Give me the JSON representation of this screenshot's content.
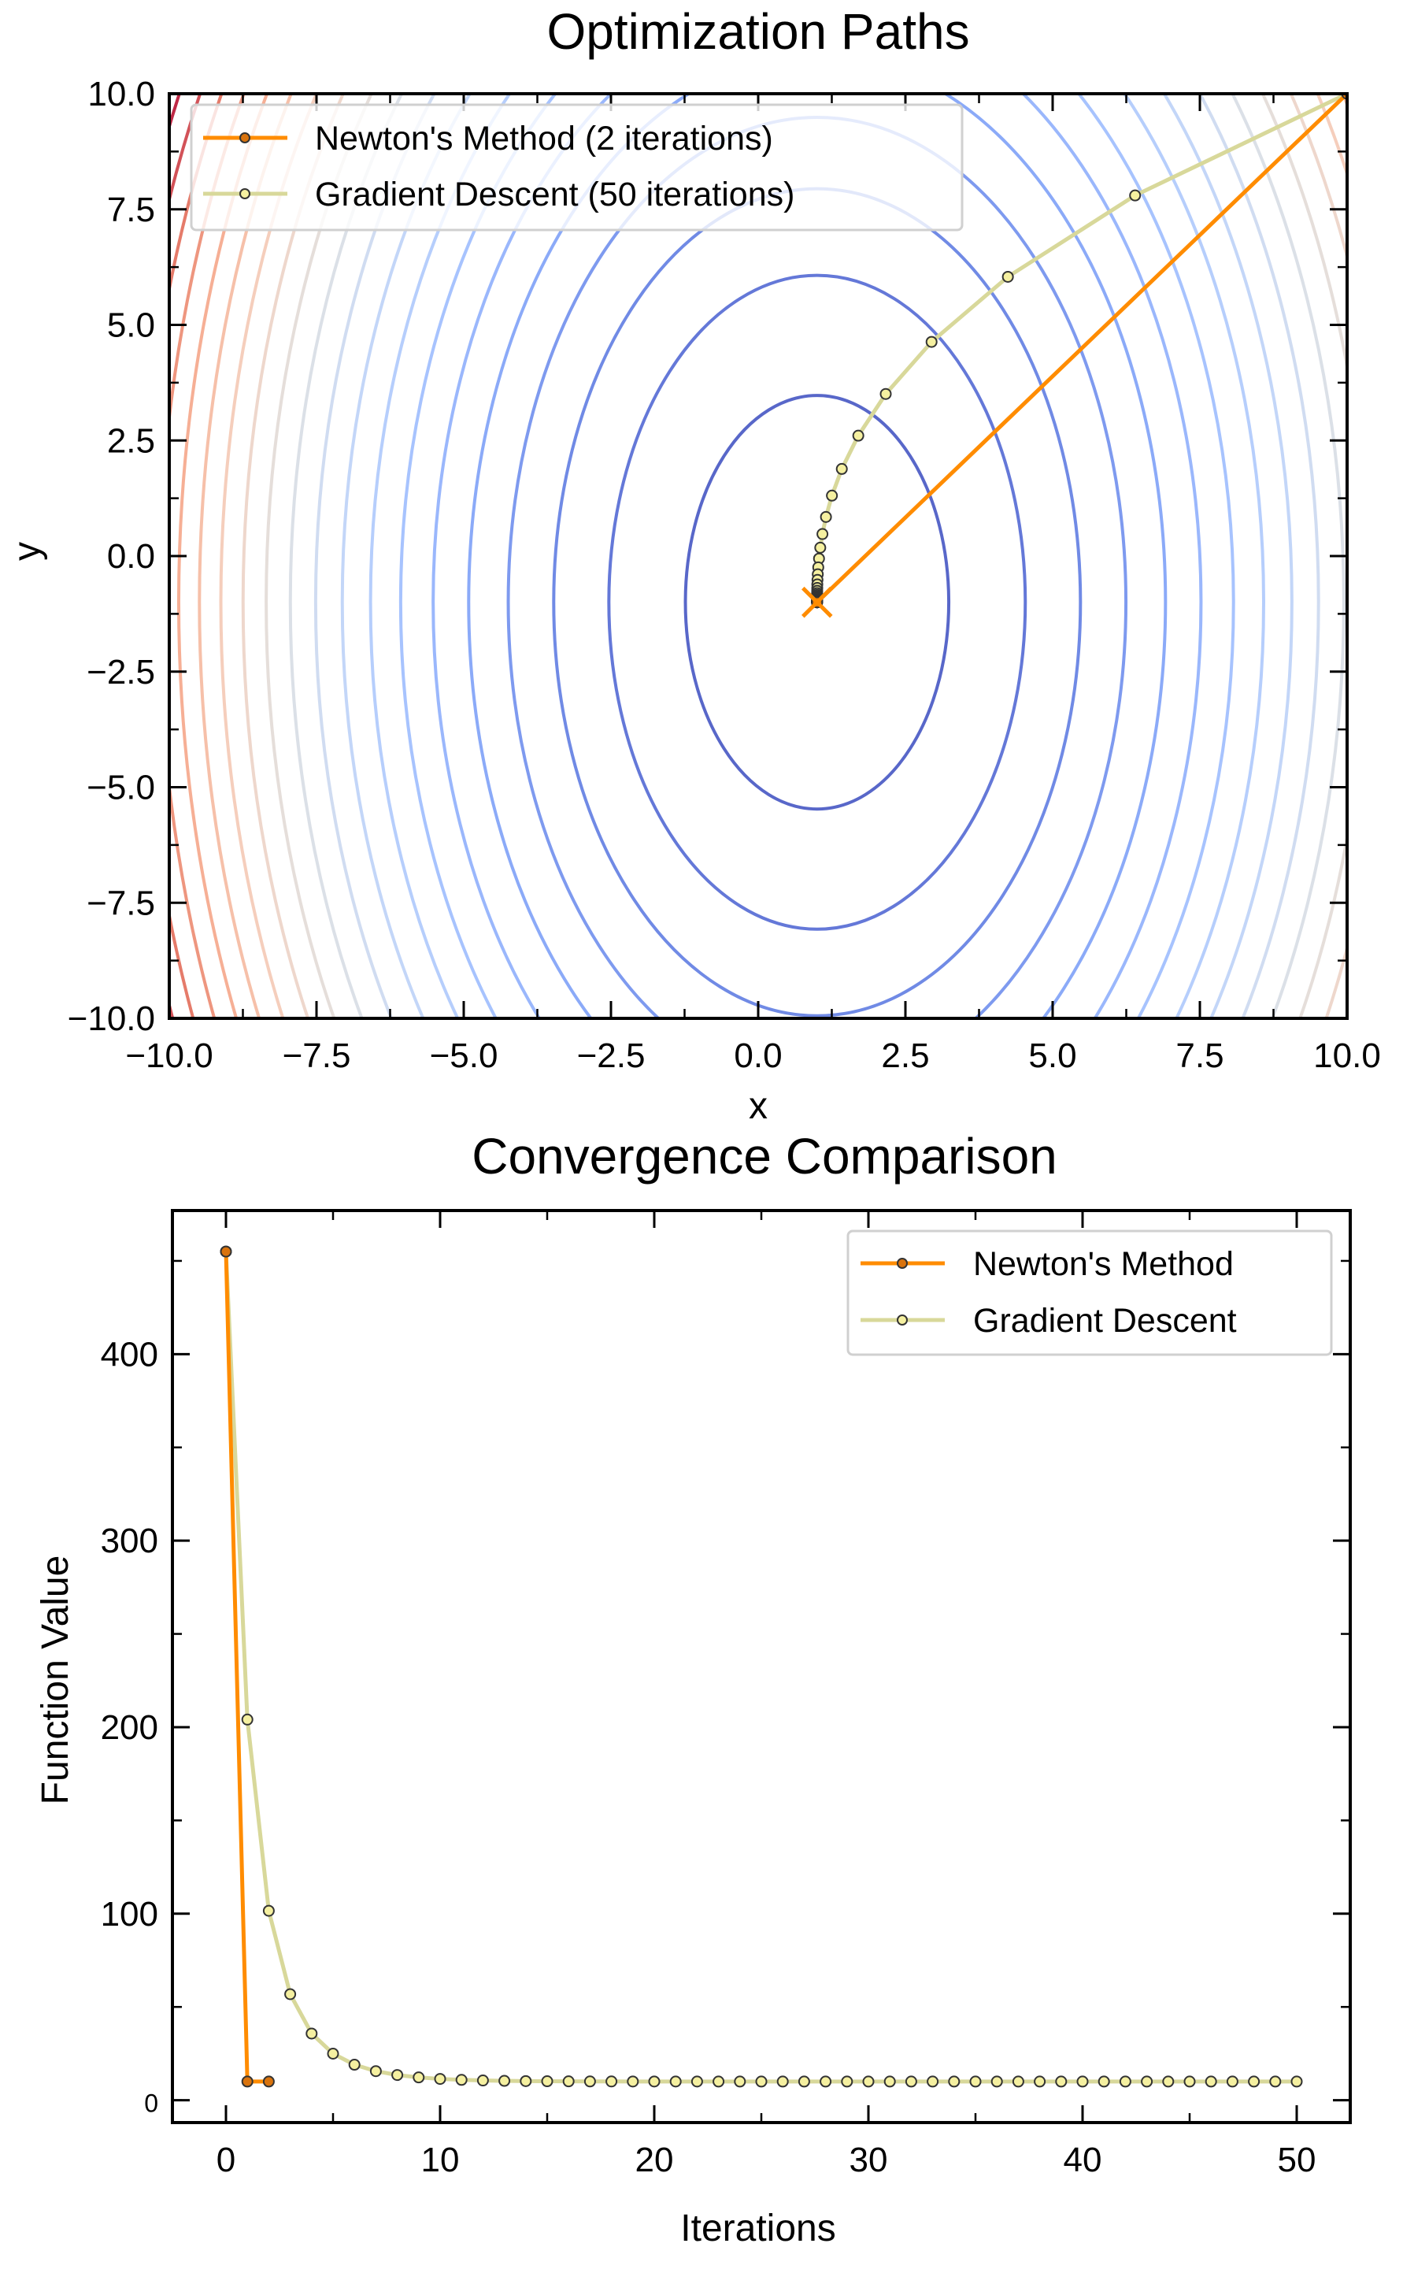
{
  "chart_data": [
    {
      "type": "contour",
      "title": "Optimization Paths",
      "xlabel": "x",
      "ylabel": "y",
      "xlim": [
        -10,
        10
      ],
      "ylim": [
        -10,
        10
      ],
      "xticks": [
        -10,
        -7.5,
        -5,
        -2.5,
        0,
        2.5,
        5,
        7.5,
        10
      ],
      "xtick_labels": [
        "−10.0",
        "−7.5",
        "−5.0",
        "−2.5",
        "0.0",
        "2.5",
        "5.0",
        "7.5",
        "10.0"
      ],
      "yticks": [
        -10,
        -7.5,
        -5,
        -2.5,
        0,
        2.5,
        5,
        7.5,
        10
      ],
      "ytick_labels": [
        "−10.0",
        "−7.5",
        "−5.0",
        "−2.5",
        "0.0",
        "2.5",
        "5.0",
        "7.5",
        "10.0"
      ],
      "minor_tick_step": 1.25,
      "grid": false,
      "legend_position": "upper-left",
      "contour": {
        "field": {
          "a": 4,
          "b": 1,
          "x0": 1,
          "y0": -1,
          "offset": 10
        },
        "levels": [
          30,
          60,
          90,
          120,
          150,
          180,
          210,
          240,
          270,
          300,
          330,
          360,
          390,
          420,
          450,
          480,
          510,
          540,
          570,
          600
        ],
        "colormap": "coolwarm"
      },
      "minimum_marker": {
        "x": 1,
        "y": -1,
        "symbol": "x",
        "color": "#ff8c00"
      },
      "series": [
        {
          "name": "Newton's Method (2 iterations)",
          "color": "#ff8c00",
          "marker_color": "#d9730d",
          "x": [
            10,
            1,
            1
          ],
          "y": [
            10,
            -1,
            -1
          ]
        },
        {
          "name": "Gradient Descent (50 iterations)",
          "color": "#d8d89a",
          "marker_color": "#f5f0a0",
          "x": [
            10,
            6.4,
            4.24,
            2.944,
            2.166,
            1.7,
            1.42,
            1.252,
            1.151,
            1.091,
            1.054,
            1.033,
            1.02,
            1.012,
            1.007,
            1.004,
            1.003,
            1.002,
            1.001,
            1.001,
            1,
            1,
            1,
            1,
            1,
            1,
            1,
            1,
            1,
            1,
            1,
            1,
            1,
            1,
            1,
            1,
            1,
            1,
            1,
            1,
            1,
            1,
            1,
            1,
            1,
            1,
            1,
            1,
            1,
            1,
            1
          ],
          "y": [
            10,
            7.8,
            6.04,
            4.632,
            3.506,
            2.604,
            1.884,
            1.307,
            0.846,
            0.476,
            0.181,
            -0.055,
            -0.244,
            -0.395,
            -0.516,
            -0.613,
            -0.69,
            -0.752,
            -0.802,
            -0.841,
            -0.873,
            -0.899,
            -0.919,
            -0.935,
            -0.948,
            -0.958,
            -0.967,
            -0.973,
            -0.979,
            -0.983,
            -0.986,
            -0.989,
            -0.991,
            -0.993,
            -0.994,
            -0.996,
            -0.996,
            -0.997,
            -0.998,
            -0.998,
            -0.999,
            -0.999,
            -0.999,
            -0.999,
            -0.999,
            -1,
            -1,
            -1,
            -1,
            -1,
            -1
          ]
        }
      ]
    },
    {
      "type": "line",
      "title": "Convergence Comparison",
      "xlabel": "Iterations",
      "ylabel": "Function Value",
      "xlim": [
        -2.5,
        52.5
      ],
      "ylim": [
        -12,
        477
      ],
      "xticks": [
        0,
        10,
        20,
        30,
        40,
        50
      ],
      "xtick_labels": [
        "0",
        "10",
        "20",
        "30",
        "40",
        "50"
      ],
      "yticks": [
        0,
        100,
        200,
        300,
        400
      ],
      "ytick_labels": [
        "0",
        "100",
        "200",
        "300",
        "400"
      ],
      "minor_xtick_step": 5,
      "minor_ytick_step": 50,
      "grid": false,
      "legend_position": "upper-right",
      "series": [
        {
          "name": "Newton's Method",
          "color": "#ff8c00",
          "marker_color": "#d9730d",
          "x": [
            0,
            1,
            2
          ],
          "y": [
            455,
            10,
            10
          ]
        },
        {
          "name": "Gradient Descent",
          "color": "#d8d89a",
          "marker_color": "#f5f0a0",
          "x": [
            0,
            1,
            2,
            3,
            4,
            5,
            6,
            7,
            8,
            9,
            10,
            11,
            12,
            13,
            14,
            15,
            16,
            17,
            18,
            19,
            20,
            21,
            22,
            23,
            24,
            25,
            26,
            27,
            28,
            29,
            30,
            31,
            32,
            33,
            34,
            35,
            36,
            37,
            38,
            39,
            40,
            41,
            42,
            43,
            44,
            45,
            46,
            47,
            48,
            49,
            50
          ],
          "y": [
            455,
            204.08,
            101.55,
            56.84,
            35.74,
            24.95,
            19.03,
            15.57,
            13.5,
            12.21,
            11.41,
            10.89,
            10.57,
            10.37,
            10.23,
            10.15,
            10.1,
            10.06,
            10.04,
            10.03,
            10.02,
            10.01,
            10.01,
            10,
            10,
            10,
            10,
            10,
            10,
            10,
            10,
            10,
            10,
            10,
            10,
            10,
            10,
            10,
            10,
            10,
            10,
            10,
            10,
            10,
            10,
            10,
            10,
            10,
            10,
            10,
            10
          ]
        }
      ]
    }
  ]
}
